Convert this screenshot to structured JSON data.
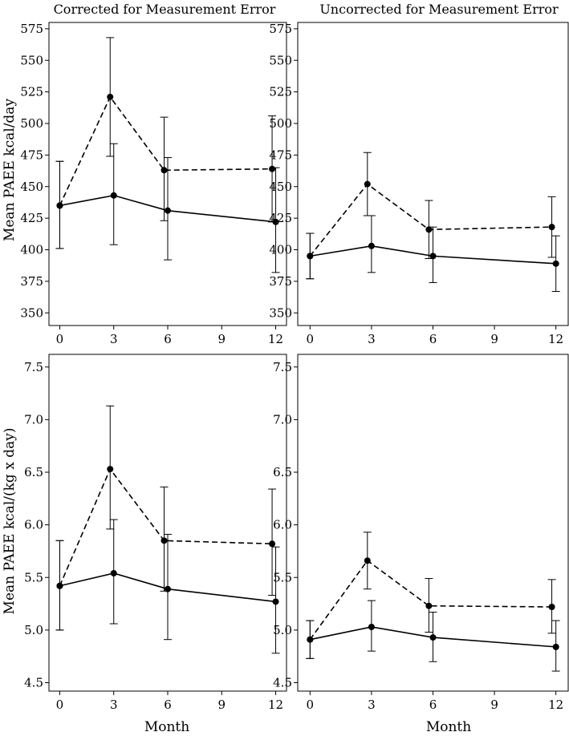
{
  "figure": {
    "col_titles": [
      "Corrected for Measurement Error",
      "Uncorrected for Measurement Error"
    ],
    "row_ylabels": [
      "Mean PAEE kcal/day",
      "Mean PAEE kcal/(kg x day)"
    ],
    "xlabel": "Month"
  },
  "chart_data": [
    {
      "type": "line",
      "title": "Corrected for Measurement Error",
      "ylabel": "Mean PAEE kcal/day",
      "xlabel": "",
      "xlim": [
        -0.6,
        12.6
      ],
      "ylim": [
        340,
        580
      ],
      "xticks": [
        0,
        3,
        6,
        9,
        12
      ],
      "xtick_labels": [
        "0",
        "3",
        "6",
        "9",
        "12"
      ],
      "yticks": [
        350,
        375,
        400,
        425,
        450,
        475,
        500,
        525,
        550,
        575
      ],
      "ytick_labels": [
        "350",
        "375",
        "400",
        "425",
        "450",
        "475",
        "500",
        "525",
        "550",
        "575"
      ],
      "series": [
        {
          "name": "dashed",
          "style": "dashed",
          "x": [
            0,
            2.8,
            5.8,
            11.8
          ],
          "y": [
            435,
            521,
            463,
            464
          ],
          "lower": [
            401,
            474,
            423,
            422
          ],
          "upper": [
            470,
            568,
            505,
            506
          ]
        },
        {
          "name": "solid",
          "style": "solid",
          "x": [
            0,
            3,
            6,
            12
          ],
          "y": [
            435,
            443,
            431,
            422
          ],
          "lower": [
            401,
            404,
            392,
            382
          ],
          "upper": [
            470,
            484,
            473,
            465
          ]
        }
      ]
    },
    {
      "type": "line",
      "title": "Uncorrected for Measurement Error",
      "ylabel": "",
      "xlabel": "",
      "xlim": [
        -0.6,
        12.6
      ],
      "ylim": [
        340,
        580
      ],
      "xticks": [
        0,
        3,
        6,
        9,
        12
      ],
      "xtick_labels": [
        "0",
        "3",
        "6",
        "9",
        "12"
      ],
      "yticks": [
        350,
        375,
        400,
        425,
        450,
        475,
        500,
        525,
        550,
        575
      ],
      "ytick_labels": [
        "350",
        "375",
        "400",
        "425",
        "450",
        "475",
        "500",
        "525",
        "550",
        "575"
      ],
      "series": [
        {
          "name": "dashed",
          "style": "dashed",
          "x": [
            0,
            2.8,
            5.8,
            11.8
          ],
          "y": [
            395,
            452,
            416,
            418
          ],
          "lower": [
            377,
            427,
            393,
            394
          ],
          "upper": [
            413,
            477,
            439,
            442
          ]
        },
        {
          "name": "solid",
          "style": "solid",
          "x": [
            0,
            3,
            6,
            12
          ],
          "y": [
            395,
            403,
            395,
            389
          ],
          "lower": [
            377,
            382,
            374,
            367
          ],
          "upper": [
            413,
            427,
            418,
            411
          ]
        }
      ]
    },
    {
      "type": "line",
      "title": "",
      "ylabel": "Mean PAEE kcal/(kg x day)",
      "xlabel": "Month",
      "xlim": [
        -0.6,
        12.6
      ],
      "ylim": [
        4.42,
        7.62
      ],
      "xticks": [
        0,
        3,
        6,
        9,
        12
      ],
      "xtick_labels": [
        "0",
        "3",
        "6",
        "9",
        "12"
      ],
      "yticks": [
        4.5,
        5.0,
        5.5,
        6.0,
        6.5,
        7.0,
        7.5
      ],
      "ytick_labels": [
        "4.5",
        "5.0",
        "5.5",
        "6.0",
        "6.5",
        "7.0",
        "7.5"
      ],
      "series": [
        {
          "name": "dashed",
          "style": "dashed",
          "x": [
            0,
            2.8,
            5.8,
            11.8
          ],
          "y": [
            5.42,
            6.53,
            5.85,
            5.82
          ],
          "lower": [
            5.0,
            5.96,
            5.37,
            5.33
          ],
          "upper": [
            5.85,
            7.13,
            6.36,
            6.34
          ]
        },
        {
          "name": "solid",
          "style": "solid",
          "x": [
            0,
            3,
            6,
            12
          ],
          "y": [
            5.42,
            5.54,
            5.39,
            5.27
          ],
          "lower": [
            5.0,
            5.06,
            4.91,
            4.78
          ],
          "upper": [
            5.85,
            6.05,
            5.91,
            5.79
          ]
        }
      ]
    },
    {
      "type": "line",
      "title": "",
      "ylabel": "",
      "xlabel": "Month",
      "xlim": [
        -0.6,
        12.6
      ],
      "ylim": [
        4.42,
        7.62
      ],
      "xticks": [
        0,
        3,
        6,
        9,
        12
      ],
      "xtick_labels": [
        "0",
        "3",
        "6",
        "9",
        "12"
      ],
      "yticks": [
        4.5,
        5.0,
        5.5,
        6.0,
        6.5,
        7.0,
        7.5
      ],
      "ytick_labels": [
        "4.5",
        "5.0",
        "5.5",
        "6.0",
        "6.5",
        "7.0",
        "7.5"
      ],
      "series": [
        {
          "name": "dashed",
          "style": "dashed",
          "x": [
            0,
            2.8,
            5.8,
            11.8
          ],
          "y": [
            4.91,
            5.66,
            5.23,
            5.22
          ],
          "lower": [
            4.73,
            5.39,
            4.98,
            4.97
          ],
          "upper": [
            5.09,
            5.93,
            5.49,
            5.48
          ]
        },
        {
          "name": "solid",
          "style": "solid",
          "x": [
            0,
            3,
            6,
            12
          ],
          "y": [
            4.91,
            5.03,
            4.93,
            4.84
          ],
          "lower": [
            4.73,
            4.8,
            4.7,
            4.61
          ],
          "upper": [
            5.09,
            5.28,
            5.17,
            5.09
          ]
        }
      ]
    }
  ]
}
